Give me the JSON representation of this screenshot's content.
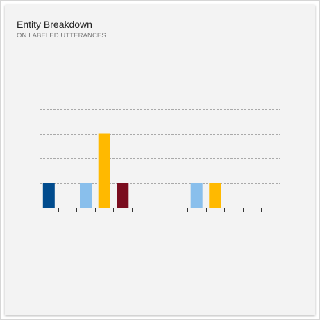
{
  "card": {
    "title": "Entity Breakdown",
    "subtitle": "ON LABELED UTTERANCES"
  },
  "chart_data": {
    "type": "bar",
    "title": "Entity Breakdown",
    "subtitle": "ON LABELED UTTERANCES",
    "xlabel": "",
    "ylabel": "",
    "ylim": [
      0,
      6
    ],
    "grid": true,
    "legend": "none",
    "categories": [
      "",
      "",
      "",
      "",
      "",
      "",
      "",
      "",
      "",
      "",
      "",
      "",
      ""
    ],
    "values": [
      1,
      0,
      1,
      3,
      1,
      0,
      0,
      0,
      1,
      1,
      0,
      0,
      0
    ],
    "colors": [
      "#004b8d",
      "#89bfec",
      "#89bfec",
      "#ffb900",
      "#7a0c1e",
      "#89bfec",
      "#89bfec",
      "#89bfec",
      "#89bfec",
      "#ffb900",
      "#89bfec",
      "#89bfec",
      "#89bfec"
    ]
  }
}
